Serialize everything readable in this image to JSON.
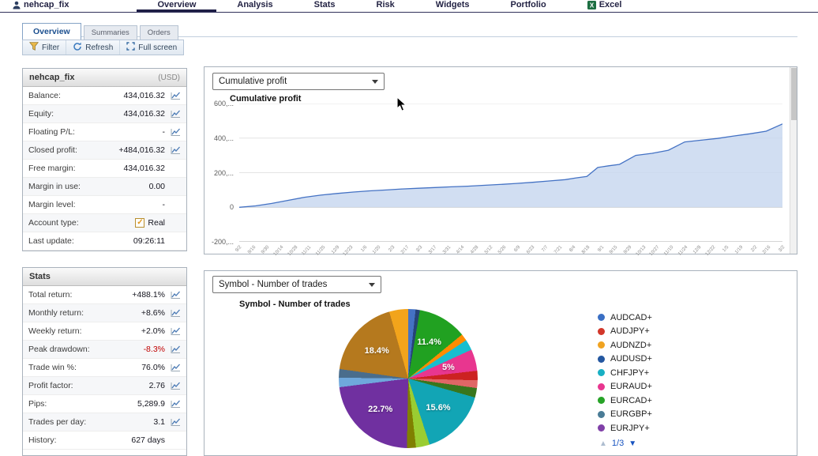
{
  "top_nav": {
    "items": [
      {
        "label": "nehcap_fix",
        "icon": "user-icon",
        "active": false
      },
      {
        "label": "Overview",
        "active": true
      },
      {
        "label": "Analysis",
        "active": false
      },
      {
        "label": "Stats",
        "active": false
      },
      {
        "label": "Risk",
        "active": false
      },
      {
        "label": "Widgets",
        "active": false
      },
      {
        "label": "Portfolio",
        "active": false
      },
      {
        "label": "Excel",
        "icon": "excel-icon",
        "active": false
      }
    ]
  },
  "sub_tabs": [
    {
      "label": "Overview",
      "active": true
    },
    {
      "label": "Summaries",
      "active": false
    },
    {
      "label": "Orders",
      "active": false
    }
  ],
  "toolbar": {
    "buttons": [
      {
        "label": "Filter",
        "icon": "filter-icon"
      },
      {
        "label": "Refresh",
        "icon": "refresh-icon"
      },
      {
        "label": "Full screen",
        "icon": "fullscreen-icon"
      }
    ]
  },
  "account_panel": {
    "title": "nehcap_fix",
    "currency": "(USD)",
    "rows": [
      {
        "label": "Balance:",
        "value": "434,016.32",
        "sparkline": true
      },
      {
        "label": "Equity:",
        "value": "434,016.32",
        "sparkline": true
      },
      {
        "label": "Floating P/L:",
        "value": "-",
        "sparkline": true
      },
      {
        "label": "Closed profit:",
        "value": "+484,016.32",
        "sparkline": true
      },
      {
        "label": "Free margin:",
        "value": "434,016.32"
      },
      {
        "label": "Margin in use:",
        "value": "0.00"
      },
      {
        "label": "Margin level:",
        "value": "-"
      },
      {
        "label": "Account type:",
        "value": "Real",
        "checkbox": true
      },
      {
        "label": "Last update:",
        "value": "09:26:11"
      }
    ]
  },
  "stats_panel": {
    "title": "Stats",
    "rows": [
      {
        "label": "Total return:",
        "value": "+488.1%",
        "sparkline": true
      },
      {
        "label": "Monthly return:",
        "value": "+8.6%",
        "sparkline": true
      },
      {
        "label": "Weekly return:",
        "value": "+2.0%",
        "sparkline": true
      },
      {
        "label": "Peak drawdown:",
        "value": "-8.3%",
        "sparkline": true,
        "negative": true
      },
      {
        "label": "Trade win %:",
        "value": "76.0%",
        "sparkline": true
      },
      {
        "label": "Profit factor:",
        "value": "2.76",
        "sparkline": true
      },
      {
        "label": "Pips:",
        "value": "5,289.9",
        "sparkline": true
      },
      {
        "label": "Trades per day:",
        "value": "3.1",
        "sparkline": true
      },
      {
        "label": "History:",
        "value": "627 days"
      }
    ]
  },
  "chart_data": [
    {
      "type": "area",
      "dropdown_value": "Cumulative profit",
      "title": "Cumulative profit",
      "ylabel": "",
      "xlabel": "",
      "ylim_thousands": [
        -200,
        600
      ],
      "y_ticks": [
        {
          "value_thousands": 600,
          "label": "600,..."
        },
        {
          "value_thousands": 400,
          "label": "400,..."
        },
        {
          "value_thousands": 200,
          "label": "200,..."
        },
        {
          "value_thousands": 0,
          "label": "0"
        },
        {
          "value_thousands": -200,
          "label": "-200,..."
        }
      ],
      "x_ticks": [
        "9/2",
        "9/16",
        "9/30",
        "10/14",
        "10/28",
        "11/11",
        "11/25",
        "12/9",
        "12/23",
        "1/6",
        "1/20",
        "2/3",
        "2/17",
        "3/3",
        "3/17",
        "3/31",
        "4/14",
        "4/28",
        "5/12",
        "5/26",
        "6/9",
        "6/23",
        "7/7",
        "7/21",
        "8/4",
        "8/18",
        "9/1",
        "9/15",
        "9/29",
        "10/13",
        "10/27",
        "11/10",
        "11/24",
        "12/8",
        "12/22",
        "1/5",
        "1/19",
        "2/2",
        "2/16",
        "3/2"
      ],
      "series": {
        "name": "Cumulative profit",
        "x_pct": [
          0,
          3,
          6,
          9,
          12,
          15,
          18,
          21,
          24,
          27,
          30,
          33,
          36,
          39,
          42,
          45,
          48,
          51,
          54,
          57,
          60,
          62,
          64,
          66,
          68,
          70,
          73,
          76,
          79,
          82,
          85,
          88,
          91,
          94,
          97,
          100
        ],
        "y_thousands": [
          0,
          8,
          22,
          40,
          58,
          70,
          80,
          88,
          95,
          100,
          106,
          110,
          114,
          118,
          122,
          127,
          132,
          138,
          144,
          152,
          160,
          170,
          178,
          230,
          240,
          248,
          300,
          312,
          330,
          378,
          388,
          398,
          412,
          425,
          440,
          482
        ]
      },
      "line_color": "#4472c4",
      "fill_color": "#c9d8f0",
      "grid": true,
      "legend_position": "none"
    },
    {
      "type": "pie",
      "dropdown_value": "Symbol - Number of trades",
      "title": "Symbol - Number of trades",
      "slices": [
        {
          "value": 1.7,
          "color": "#4472c4",
          "label": ""
        },
        {
          "value": 1.0,
          "color": "#264478",
          "label": ""
        },
        {
          "value": 11.4,
          "color": "#21a121",
          "label": "11.4%"
        },
        {
          "value": 1.6,
          "color": "#ff8c00",
          "label": ""
        },
        {
          "value": 2.5,
          "color": "#17becf",
          "label": ""
        },
        {
          "value": 5.0,
          "color": "#e8368f",
          "label": "5%"
        },
        {
          "value": 2.2,
          "color": "#cc2222",
          "label": ""
        },
        {
          "value": 1.8,
          "color": "#e06666",
          "label": ""
        },
        {
          "value": 2.2,
          "color": "#38761d",
          "label": ""
        },
        {
          "value": 15.6,
          "color": "#12a5b5",
          "label": "15.6%"
        },
        {
          "value": 3.2,
          "color": "#9acd32",
          "label": ""
        },
        {
          "value": 2.1,
          "color": "#808000",
          "label": ""
        },
        {
          "value": 22.7,
          "color": "#7030a0",
          "label": "22.7%"
        },
        {
          "value": 2.2,
          "color": "#6fa8dc",
          "label": ""
        },
        {
          "value": 2.0,
          "color": "#4a6d8c",
          "label": ""
        },
        {
          "value": 18.4,
          "color": "#b5791e",
          "label": "18.4%"
        },
        {
          "value": 4.4,
          "color": "#f2a41b",
          "label": ""
        }
      ],
      "legend": [
        {
          "label": "AUDCAD+",
          "color": "#3a6fc4"
        },
        {
          "label": "AUDJPY+",
          "color": "#d2372a"
        },
        {
          "label": "AUDNZD+",
          "color": "#f0a321"
        },
        {
          "label": "AUDUSD+",
          "color": "#2457a0"
        },
        {
          "label": "CHFJPY+",
          "color": "#19b0c4"
        },
        {
          "label": "EURAUD+",
          "color": "#e8368f"
        },
        {
          "label": "EURCAD+",
          "color": "#27a327"
        },
        {
          "label": "EURGBP+",
          "color": "#4a7c96"
        },
        {
          "label": "EURJPY+",
          "color": "#8040a8"
        }
      ],
      "pagination": {
        "up": "▲",
        "label": "1/3",
        "down": "▼"
      },
      "legend_position": "right"
    }
  ]
}
